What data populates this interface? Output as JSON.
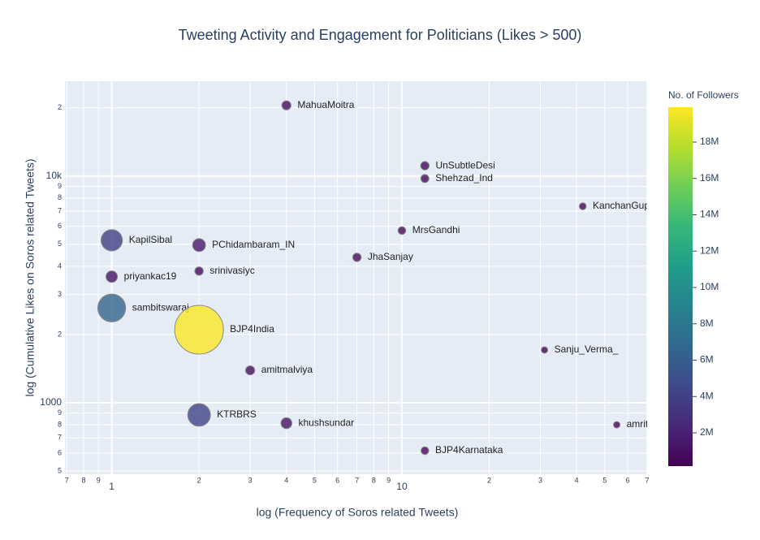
{
  "chart_data": {
    "type": "scatter",
    "title": "Tweeting Activity and Engagement for Politicians (Likes > 500)",
    "x_label": "log (Frequency of Soros related Tweets)",
    "y_label": "log (Cumulative Likes on Soros related Tweets)",
    "log_x": true,
    "log_y": true,
    "grid": true,
    "xlim": [
      0.69,
      70
    ],
    "ylim": [
      484,
      26200
    ],
    "xticks": [
      {
        "value": 0.7,
        "label": "7"
      },
      {
        "value": 0.8,
        "label": "8"
      },
      {
        "value": 0.9,
        "label": "9"
      },
      1,
      2,
      3,
      4,
      5,
      6,
      7,
      8,
      9,
      10,
      {
        "value": 20,
        "label": "2"
      },
      {
        "value": 30,
        "label": "3"
      },
      {
        "value": 40,
        "label": "4"
      },
      {
        "value": 50,
        "label": "5"
      },
      {
        "value": 60,
        "label": "6"
      },
      {
        "value": 70,
        "label": "7"
      }
    ],
    "yticks": [
      {
        "value": 500,
        "label": "5"
      },
      {
        "value": 600,
        "label": "6"
      },
      {
        "value": 700,
        "label": "7"
      },
      {
        "value": 800,
        "label": "8"
      },
      {
        "value": 900,
        "label": "9"
      },
      1000,
      {
        "value": 2000,
        "label": "2"
      },
      {
        "value": 3000,
        "label": "3"
      },
      {
        "value": 4000,
        "label": "4"
      },
      {
        "value": 5000,
        "label": "5"
      },
      {
        "value": 6000,
        "label": "6"
      },
      {
        "value": 7000,
        "label": "7"
      },
      {
        "value": 8000,
        "label": "8"
      },
      {
        "value": 9000,
        "label": "9"
      },
      {
        "value": 10000,
        "label": "10k"
      },
      {
        "value": 20000,
        "label": "2"
      }
    ],
    "colorbar_title": "No. of Followers",
    "colorlim": [
      170000,
      19920000
    ],
    "colorticks": [
      {
        "value": 2000000,
        "label": "2M"
      },
      {
        "value": 4000000,
        "label": "4M"
      },
      {
        "value": 6000000,
        "label": "6M"
      },
      {
        "value": 8000000,
        "label": "8M"
      },
      {
        "value": 10000000,
        "label": "10M"
      },
      {
        "value": 12000000,
        "label": "12M"
      },
      {
        "value": 14000000,
        "label": "14M"
      },
      {
        "value": 16000000,
        "label": "16M"
      },
      {
        "value": 18000000,
        "label": "18M"
      }
    ],
    "colorscale": [
      "#440154",
      "#482878",
      "#3e4989",
      "#31688e",
      "#26828e",
      "#1f9e89",
      "#35b779",
      "#6ece58",
      "#b5de2b",
      "#fde725"
    ],
    "labels": [
      "MahuaMoitra",
      "UnSubtleDesi",
      "Shehzad_Ind",
      "KanchanGupt",
      "MrsGandhi",
      "KapilSibal",
      "PChidambaram_IN",
      "JhaSanjay",
      "srinivasiyc",
      "priyankac19",
      "sambitswaraj",
      "BJP4India",
      "Sanju_Verma_",
      "amitmalviya",
      "KTRBRS",
      "khushsundar",
      "amrita",
      "BJP4Karnataka"
    ],
    "x": [
      4,
      12,
      12,
      42,
      10,
      1,
      2,
      7,
      2,
      1,
      1,
      2,
      31,
      3,
      2,
      4,
      55,
      12
    ],
    "y": [
      20500,
      11100,
      9750,
      7360,
      5750,
      5210,
      4960,
      4380,
      3810,
      3600,
      2620,
      2100,
      1710,
      1390,
      884,
      813,
      800,
      615
    ],
    "followers": [
      700000,
      600000,
      550000,
      400000,
      500000,
      3800000,
      1400000,
      600000,
      600000,
      1100000,
      6500000,
      19900000,
      300000,
      700000,
      4300000,
      1000000,
      200000,
      500000
    ]
  }
}
